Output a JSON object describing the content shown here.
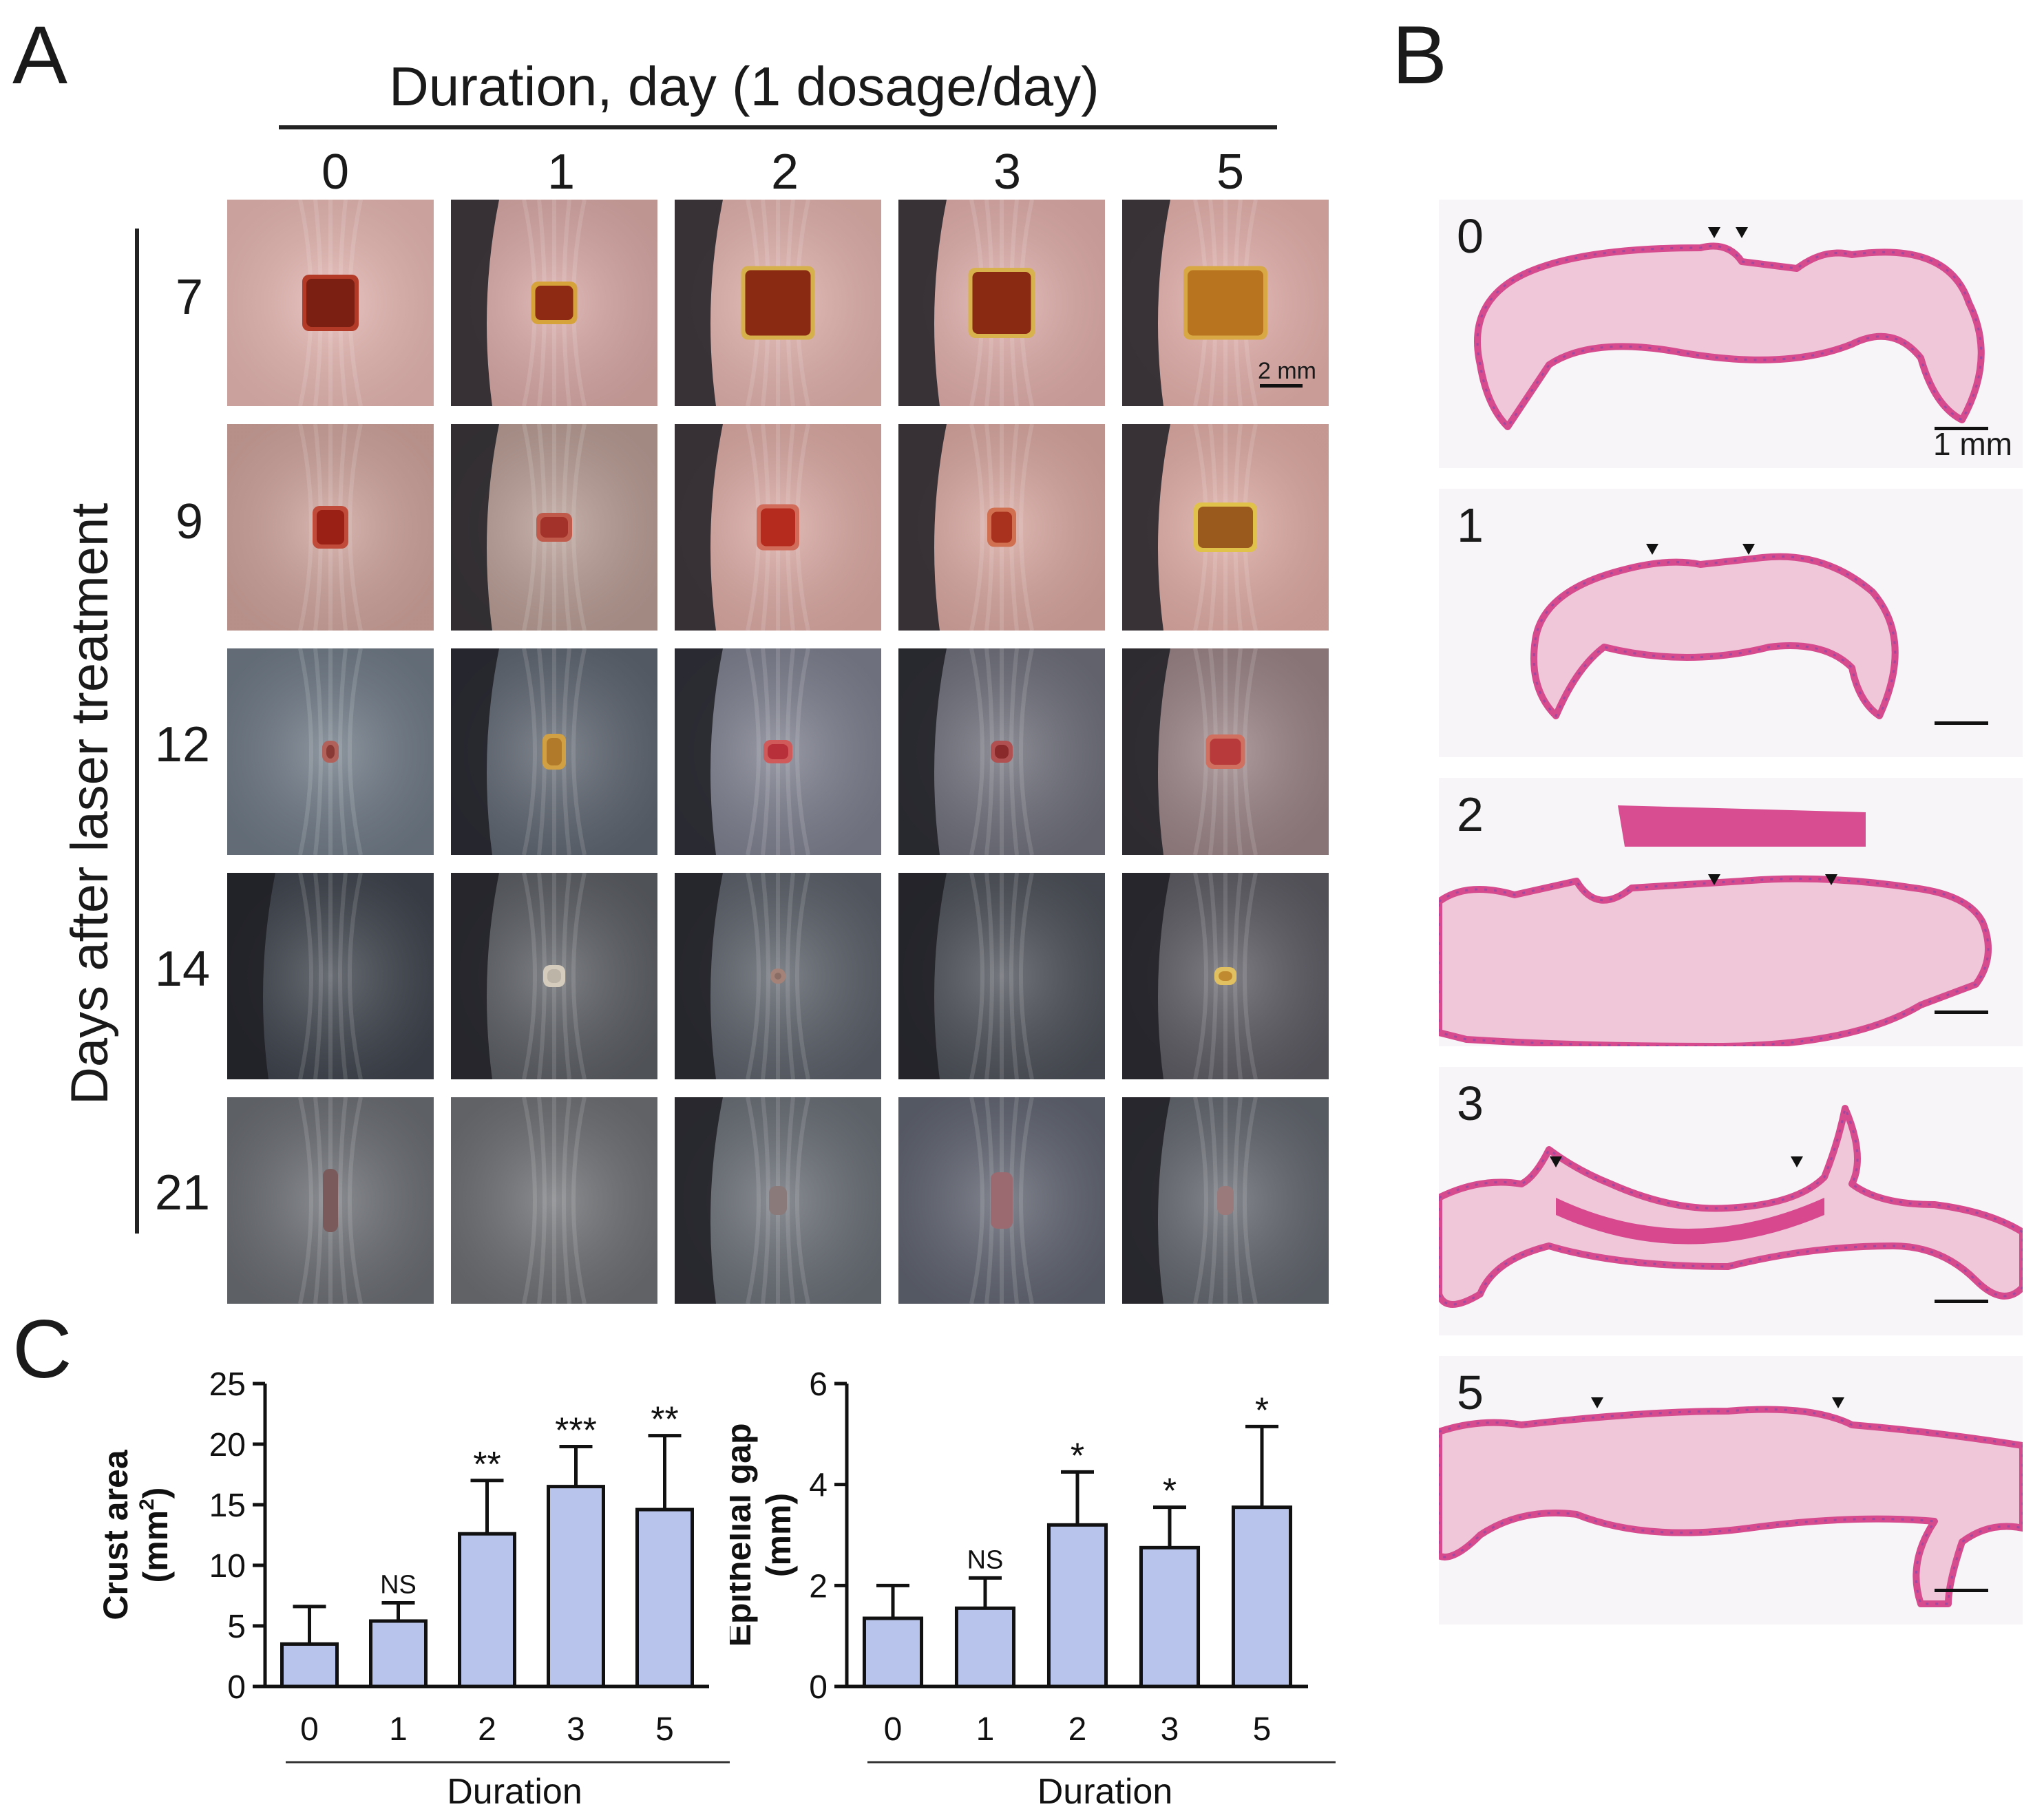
{
  "panels": {
    "a": "A",
    "b": "B",
    "c": "C"
  },
  "panel_a": {
    "header": "Duration, day (1 dosage/day)",
    "columns": [
      "0",
      "1",
      "2",
      "3",
      "5"
    ],
    "rows": [
      "7",
      "9",
      "12",
      "14",
      "21"
    ],
    "y_title": "Days after laser treatment",
    "scale_bar": "2 mm"
  },
  "panel_b": {
    "labels": [
      "0",
      "1",
      "2",
      "3",
      "5"
    ],
    "scale_bar": "1 mm"
  },
  "chart_data": [
    {
      "type": "bar",
      "categories": [
        "0",
        "1",
        "2",
        "3",
        "5"
      ],
      "values": [
        3.5,
        5.4,
        12.6,
        16.5,
        14.6
      ],
      "errors": [
        3.1,
        1.5,
        4.4,
        3.3,
        6.1
      ],
      "significance": [
        "",
        "NS",
        "**",
        "***",
        "**"
      ],
      "ylabel": "Crust area (mm²)",
      "ylabel_line1": "Crust area",
      "ylabel_line2_prefix": "(mm",
      "ylabel_sup": "2",
      "ylabel_line2_suffix": ")",
      "xlabel": "Duration",
      "ylim": [
        0,
        25
      ],
      "yticks": [
        "0",
        "5",
        "10",
        "15",
        "20",
        "25"
      ],
      "bar_color": "#b8c4ec"
    },
    {
      "type": "bar",
      "categories": [
        "0",
        "1",
        "2",
        "3",
        "5"
      ],
      "values": [
        1.35,
        1.55,
        3.2,
        2.75,
        3.55
      ],
      "errors": [
        0.65,
        0.6,
        1.05,
        0.8,
        1.6
      ],
      "significance": [
        "",
        "NS",
        "*",
        "*",
        "*"
      ],
      "ylabel": "Epithelial gap (mm)",
      "ylabel_line1": "Epithelial gap",
      "ylabel_line2": "(mm)",
      "xlabel": "Duration",
      "ylim": [
        0,
        6
      ],
      "yticks": [
        "0",
        "2",
        "4",
        "6"
      ],
      "bar_color": "#b8c4ec"
    }
  ]
}
